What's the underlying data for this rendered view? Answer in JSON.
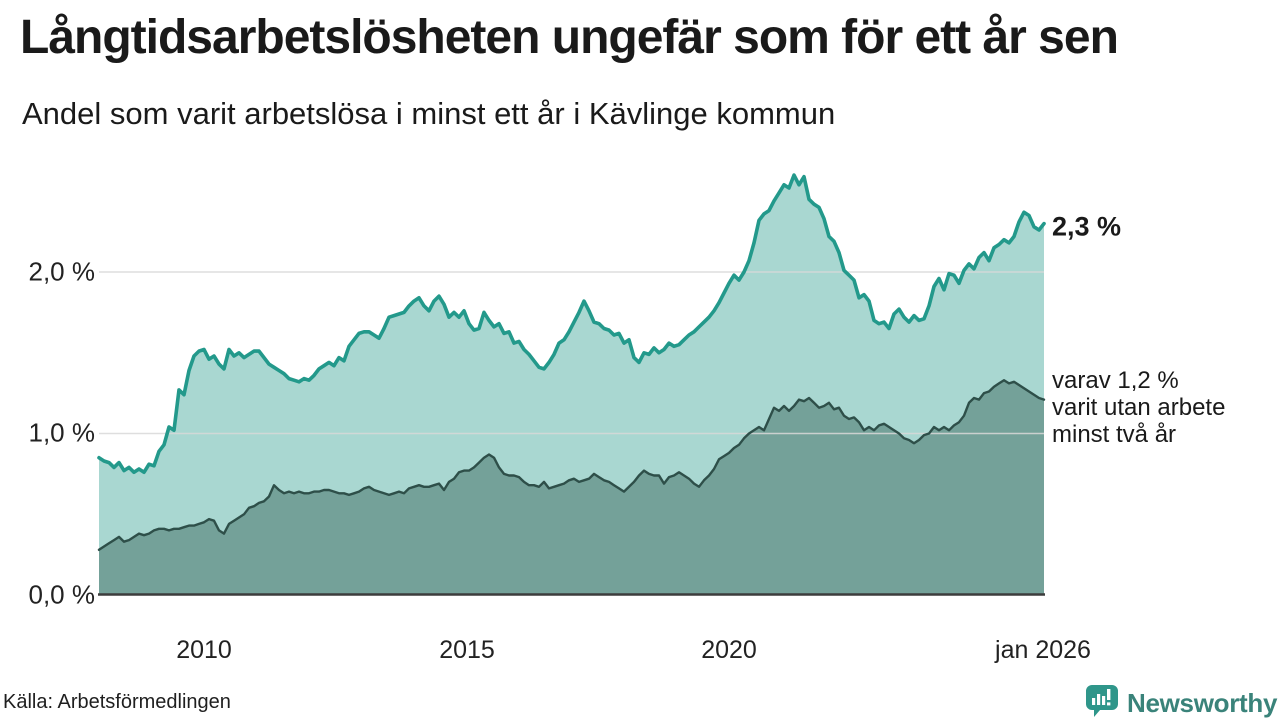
{
  "header": {
    "title": "Långtidsarbetslösheten ungefär som för ett år sen",
    "subtitle": "Andel som varit arbetslösa i minst ett år i Kävlinge kommun"
  },
  "annotations": {
    "total_end_label": "2,3 %",
    "subset_end_line1": "varav 1,2 %",
    "subset_end_line2": "varit utan arbete",
    "subset_end_line3": "minst två år"
  },
  "footer": {
    "source": "Källa: Arbetsförmedlingen",
    "brand": "Newsworthy",
    "logo_icon": "bar-chart-speech-bubble-icon"
  },
  "colors": {
    "total_line": "#23998b",
    "total_fill": "#a9d7d1",
    "subset_line": "#2e4f49",
    "subset_fill": "#74a199",
    "gridline": "#d9d9d9",
    "axis": "#3c3c3c",
    "brand_teal": "#2f968a",
    "brand_text": "#3a837a",
    "text": "#1a1a1a"
  },
  "chart_data": {
    "type": "area",
    "title": "Långtidsarbetslösheten ungefär som för ett år sen",
    "subtitle": "Andel som varit arbetslösa i minst ett år i Kävlinge kommun",
    "unit": "%",
    "grid": "horizontal",
    "legend_position": "end-of-line-labels",
    "x_range": [
      2008,
      2026
    ],
    "y_range": [
      0,
      2.66
    ],
    "x_ticks": [
      {
        "value": 2010,
        "label": "2010"
      },
      {
        "value": 2015,
        "label": "2015"
      },
      {
        "value": 2020,
        "label": "2020"
      },
      {
        "value": 2026,
        "label": "jan 2026"
      }
    ],
    "y_ticks": [
      {
        "value": 0,
        "label": "0,0 %"
      },
      {
        "value": 1,
        "label": "1,0 %"
      },
      {
        "value": 2,
        "label": "2,0 %"
      }
    ],
    "series": [
      {
        "name": "Andel arbetslösa minst ett år",
        "end_value": 2.3,
        "color_key": "total",
        "values": [
          0.85,
          0.83,
          0.82,
          0.79,
          0.82,
          0.77,
          0.79,
          0.76,
          0.78,
          0.76,
          0.81,
          0.8,
          0.89,
          0.93,
          1.04,
          1.02,
          1.27,
          1.24,
          1.39,
          1.48,
          1.51,
          1.52,
          1.46,
          1.48,
          1.43,
          1.4,
          1.52,
          1.48,
          1.5,
          1.47,
          1.49,
          1.51,
          1.51,
          1.47,
          1.43,
          1.41,
          1.39,
          1.37,
          1.34,
          1.33,
          1.32,
          1.34,
          1.33,
          1.36,
          1.4,
          1.42,
          1.44,
          1.42,
          1.47,
          1.45,
          1.54,
          1.58,
          1.62,
          1.63,
          1.63,
          1.61,
          1.59,
          1.65,
          1.72,
          1.73,
          1.74,
          1.75,
          1.79,
          1.82,
          1.84,
          1.79,
          1.76,
          1.82,
          1.85,
          1.8,
          1.72,
          1.75,
          1.72,
          1.76,
          1.68,
          1.64,
          1.65,
          1.75,
          1.7,
          1.66,
          1.68,
          1.62,
          1.63,
          1.56,
          1.57,
          1.52,
          1.49,
          1.45,
          1.41,
          1.4,
          1.44,
          1.49,
          1.56,
          1.58,
          1.63,
          1.69,
          1.75,
          1.82,
          1.76,
          1.69,
          1.68,
          1.65,
          1.64,
          1.61,
          1.62,
          1.56,
          1.58,
          1.47,
          1.44,
          1.5,
          1.49,
          1.53,
          1.5,
          1.52,
          1.56,
          1.54,
          1.55,
          1.58,
          1.61,
          1.63,
          1.66,
          1.69,
          1.72,
          1.76,
          1.81,
          1.87,
          1.93,
          1.98,
          1.95,
          2.0,
          2.07,
          2.18,
          2.32,
          2.36,
          2.38,
          2.44,
          2.49,
          2.54,
          2.52,
          2.6,
          2.54,
          2.59,
          2.45,
          2.42,
          2.4,
          2.33,
          2.22,
          2.19,
          2.12,
          2.01,
          1.98,
          1.95,
          1.84,
          1.86,
          1.82,
          1.7,
          1.68,
          1.69,
          1.65,
          1.74,
          1.77,
          1.72,
          1.69,
          1.73,
          1.7,
          1.71,
          1.79,
          1.91,
          1.96,
          1.89,
          1.99,
          1.98,
          1.93,
          2.01,
          2.05,
          2.02,
          2.09,
          2.12,
          2.07,
          2.15,
          2.17,
          2.2,
          2.18,
          2.22,
          2.31,
          2.37,
          2.35,
          2.28,
          2.26,
          2.3
        ]
      },
      {
        "name": "varav utan arbete minst två år",
        "end_value": 1.2,
        "color_key": "subset",
        "values": [
          0.28,
          0.3,
          0.32,
          0.34,
          0.36,
          0.33,
          0.34,
          0.36,
          0.38,
          0.37,
          0.38,
          0.4,
          0.41,
          0.41,
          0.4,
          0.41,
          0.41,
          0.42,
          0.43,
          0.43,
          0.44,
          0.45,
          0.47,
          0.46,
          0.4,
          0.38,
          0.44,
          0.46,
          0.48,
          0.5,
          0.54,
          0.55,
          0.57,
          0.58,
          0.61,
          0.68,
          0.65,
          0.63,
          0.64,
          0.63,
          0.64,
          0.63,
          0.63,
          0.64,
          0.64,
          0.65,
          0.65,
          0.64,
          0.63,
          0.63,
          0.62,
          0.63,
          0.64,
          0.66,
          0.67,
          0.65,
          0.64,
          0.63,
          0.62,
          0.63,
          0.64,
          0.63,
          0.66,
          0.67,
          0.68,
          0.67,
          0.67,
          0.68,
          0.69,
          0.65,
          0.7,
          0.72,
          0.76,
          0.77,
          0.77,
          0.79,
          0.82,
          0.85,
          0.87,
          0.85,
          0.79,
          0.75,
          0.74,
          0.74,
          0.73,
          0.7,
          0.68,
          0.68,
          0.67,
          0.7,
          0.66,
          0.67,
          0.68,
          0.69,
          0.71,
          0.72,
          0.7,
          0.71,
          0.72,
          0.75,
          0.73,
          0.71,
          0.7,
          0.68,
          0.66,
          0.64,
          0.67,
          0.7,
          0.74,
          0.77,
          0.75,
          0.74,
          0.74,
          0.69,
          0.73,
          0.74,
          0.76,
          0.74,
          0.72,
          0.69,
          0.67,
          0.71,
          0.74,
          0.78,
          0.84,
          0.86,
          0.88,
          0.91,
          0.93,
          0.97,
          1.0,
          1.02,
          1.04,
          1.02,
          1.09,
          1.16,
          1.14,
          1.17,
          1.14,
          1.17,
          1.21,
          1.2,
          1.22,
          1.19,
          1.16,
          1.17,
          1.19,
          1.15,
          1.16,
          1.11,
          1.09,
          1.1,
          1.07,
          1.02,
          1.04,
          1.02,
          1.05,
          1.06,
          1.04,
          1.02,
          1.0,
          0.97,
          0.96,
          0.94,
          0.96,
          0.99,
          1.0,
          1.04,
          1.02,
          1.04,
          1.02,
          1.05,
          1.07,
          1.11,
          1.19,
          1.22,
          1.21,
          1.25,
          1.26,
          1.29,
          1.31,
          1.33,
          1.31,
          1.32,
          1.3,
          1.28,
          1.26,
          1.24,
          1.22,
          1.21
        ]
      }
    ]
  }
}
